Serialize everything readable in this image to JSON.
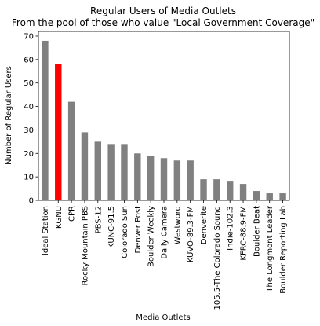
{
  "chart_data": {
    "type": "bar",
    "title": "Regular Users of Media Outlets",
    "subtitle": "From the pool of those who value \"Local Government Coverage\"",
    "xlabel": "Media Outlets",
    "ylabel": "Number of Regular Users",
    "ylim": [
      0,
      72
    ],
    "yticks": [
      0,
      10,
      20,
      30,
      40,
      50,
      60,
      70
    ],
    "grid": false,
    "legend": "none",
    "categories": [
      "Ideal Station",
      "KGNU",
      "CPR",
      "Rocky Mountain PBS",
      "PBS-12",
      "KUNC-91.5",
      "Colorado Sun",
      "Denver Post",
      "Boulder Weekly",
      "Daily Camera",
      "Westword",
      "KUVO-89.3-FM",
      "Denverite",
      "105.5-The Colorado Sound",
      "Indie-102.3",
      "KFRC-88.9-FM",
      "Boulder Beat",
      "The Longmont Leader",
      "Boulder Reporting Lab"
    ],
    "values": [
      68,
      58,
      42,
      29,
      25,
      24,
      24,
      20,
      19,
      18,
      17,
      17,
      9,
      9,
      8,
      7,
      4,
      3,
      3
    ],
    "bar_colors": [
      "#808080",
      "#ff0000",
      "#808080",
      "#808080",
      "#808080",
      "#808080",
      "#808080",
      "#808080",
      "#808080",
      "#808080",
      "#808080",
      "#808080",
      "#808080",
      "#808080",
      "#808080",
      "#808080",
      "#808080",
      "#808080",
      "#808080"
    ]
  }
}
